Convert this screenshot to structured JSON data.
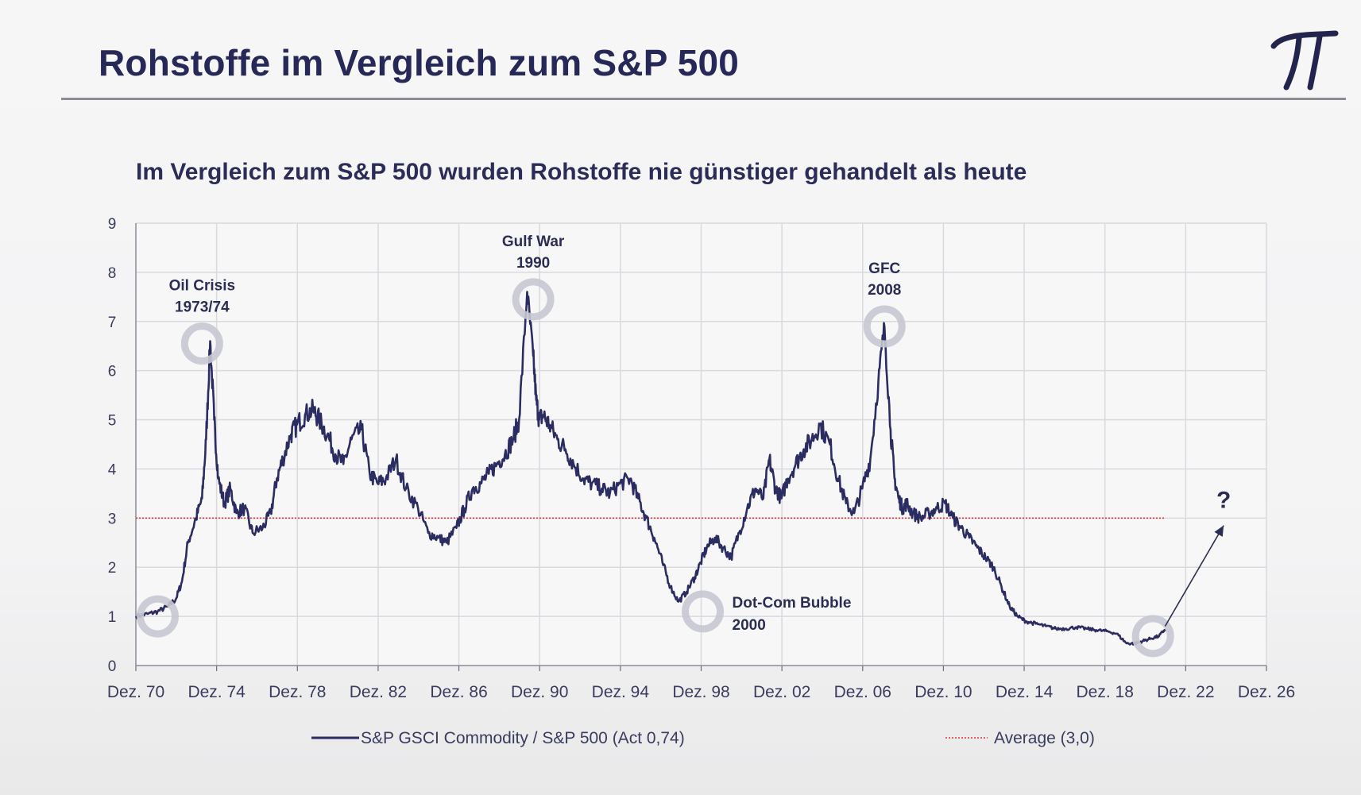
{
  "slide": {
    "title": "Rohstoffe im Vergleich zum S&P 500",
    "logo_glyph": "π"
  },
  "chart_data": {
    "type": "line",
    "title": "Im Vergleich zum S&P 500 wurden Rohstoffe nie günstiger gehandelt als heute",
    "xlabel": "",
    "ylabel": "",
    "ylim": [
      0,
      9
    ],
    "yticks": [
      "0",
      "1",
      "2",
      "3",
      "4",
      "5",
      "6",
      "7",
      "8",
      "9"
    ],
    "xlim": [
      1970.92,
      2026.92
    ],
    "xticks": [
      {
        "year": 1970.92,
        "label": "Dez. 70"
      },
      {
        "year": 1974.92,
        "label": "Dez. 74"
      },
      {
        "year": 1978.92,
        "label": "Dez. 78"
      },
      {
        "year": 1982.92,
        "label": "Dez. 82"
      },
      {
        "year": 1986.92,
        "label": "Dez. 86"
      },
      {
        "year": 1990.92,
        "label": "Dez. 90"
      },
      {
        "year": 1994.92,
        "label": "Dez. 94"
      },
      {
        "year": 1998.92,
        "label": "Dez. 98"
      },
      {
        "year": 2002.92,
        "label": "Dez. 02"
      },
      {
        "year": 2006.92,
        "label": "Dez. 06"
      },
      {
        "year": 2010.92,
        "label": "Dez. 10"
      },
      {
        "year": 2014.92,
        "label": "Dez. 14"
      },
      {
        "year": 2018.92,
        "label": "Dez. 18"
      },
      {
        "year": 2022.92,
        "label": "Dez. 22"
      },
      {
        "year": 2026.92,
        "label": "Dez. 26"
      }
    ],
    "grid": true,
    "series": [
      {
        "name": "S&P GSCI Commodity / S&P 500 (Act 0,74)",
        "color": "#2b2d62",
        "x": [
          1970.92,
          1971.5,
          1972.0,
          1972.5,
          1972.9,
          1973.2,
          1973.5,
          1973.9,
          1974.2,
          1974.4,
          1974.6,
          1974.8,
          1975.0,
          1975.3,
          1975.6,
          1975.9,
          1976.3,
          1976.7,
          1977.2,
          1977.6,
          1977.9,
          1978.2,
          1978.6,
          1978.9,
          1979.3,
          1979.7,
          1980.0,
          1980.4,
          1980.8,
          1981.2,
          1981.6,
          1982.1,
          1982.5,
          1982.9,
          1983.3,
          1983.8,
          1984.3,
          1984.9,
          1985.4,
          1985.9,
          1986.3,
          1986.8,
          1987.2,
          1987.6,
          1988.0,
          1988.4,
          1988.8,
          1989.2,
          1989.6,
          1989.9,
          1990.3,
          1990.6,
          1990.75,
          1990.9,
          1991.1,
          1991.4,
          1991.8,
          1992.2,
          1992.6,
          1993.1,
          1993.5,
          1994.0,
          1994.4,
          1994.9,
          1995.4,
          1995.8,
          1996.2,
          1996.6,
          1997.0,
          1997.4,
          1997.8,
          1998.2,
          1998.6,
          1998.9,
          1999.2,
          1999.6,
          2000.0,
          2000.4,
          2000.8,
          2001.2,
          2001.6,
          2002.0,
          2002.3,
          2002.6,
          2002.9,
          2003.2,
          2003.6,
          2004.0,
          2004.4,
          2004.8,
          2005.3,
          2005.7,
          2006.1,
          2006.5,
          2006.9,
          2007.3,
          2007.7,
          2008.0,
          2008.3,
          2008.5,
          2008.7,
          2008.9,
          2009.1,
          2009.4,
          2009.8,
          2010.2,
          2010.6,
          2011.0,
          2011.4,
          2011.8,
          2012.2,
          2012.6,
          2013.0,
          2013.4,
          2013.8,
          2014.2,
          2014.6,
          2015.0,
          2015.5,
          2016.0,
          2016.5,
          2017.0,
          2017.5,
          2018.0,
          2018.5,
          2019.0,
          2019.5,
          2020.0,
          2020.4,
          2020.8,
          2021.2,
          2021.6,
          2021.9
        ],
        "values": [
          1.0,
          1.05,
          1.1,
          1.2,
          1.35,
          1.7,
          2.5,
          3.0,
          3.4,
          4.6,
          6.6,
          5.0,
          3.8,
          3.3,
          3.6,
          3.1,
          3.2,
          2.7,
          2.8,
          3.1,
          3.8,
          4.2,
          4.7,
          4.9,
          5.1,
          5.2,
          5.0,
          4.7,
          4.3,
          4.1,
          4.6,
          4.8,
          3.9,
          3.7,
          3.8,
          4.2,
          3.6,
          3.2,
          2.7,
          2.6,
          2.5,
          2.8,
          3.2,
          3.6,
          3.7,
          3.9,
          4.1,
          4.3,
          4.6,
          5.0,
          7.6,
          6.3,
          5.4,
          5.0,
          5.1,
          4.9,
          4.6,
          4.4,
          4.1,
          3.8,
          3.7,
          3.6,
          3.5,
          3.7,
          3.8,
          3.4,
          3.0,
          2.6,
          2.1,
          1.6,
          1.3,
          1.5,
          1.8,
          2.1,
          2.4,
          2.6,
          2.4,
          2.2,
          2.7,
          3.2,
          3.6,
          3.4,
          4.2,
          3.6,
          3.4,
          3.8,
          4.1,
          4.4,
          4.6,
          4.9,
          4.5,
          3.8,
          3.3,
          3.1,
          3.6,
          4.2,
          5.8,
          6.9,
          4.8,
          3.8,
          3.4,
          3.2,
          3.3,
          3.1,
          3.0,
          3.1,
          3.2,
          3.3,
          3.0,
          2.8,
          2.6,
          2.4,
          2.2,
          2.0,
          1.6,
          1.2,
          1.0,
          0.9,
          0.85,
          0.8,
          0.75,
          0.75,
          0.78,
          0.75,
          0.72,
          0.7,
          0.65,
          0.45,
          0.45,
          0.5,
          0.55,
          0.6,
          0.74
        ]
      },
      {
        "name": "Average (3,0)",
        "color": "#d9353b",
        "x": [
          1970.92,
          2021.9
        ],
        "values": [
          3.0,
          3.0
        ]
      }
    ],
    "legend": {
      "placement": "bottom",
      "items": [
        {
          "label": "S&P GSCI Commodity / S&P 500 (Act 0,74)",
          "style": "solid",
          "color": "#2b2d62"
        },
        {
          "label": "Average (3,0)",
          "style": "dotted",
          "color": "#d9353b"
        }
      ]
    },
    "annotations": [
      {
        "line1": "Oil Crisis",
        "line2": "1973/74",
        "x": 1974.2,
        "y": 6.55,
        "label_position": "above"
      },
      {
        "line1": "Gulf War",
        "line2": "1990",
        "x": 1990.6,
        "y": 7.45,
        "label_position": "above"
      },
      {
        "line1": "GFC",
        "line2": "2008",
        "x": 2008.0,
        "y": 6.9,
        "label_position": "above"
      },
      {
        "line1": "Dot-Com Bubble",
        "line2": "2000",
        "x": 1999.0,
        "y": 1.1,
        "label_position": "right"
      },
      {
        "line1": "",
        "line2": "",
        "x": 1972.0,
        "y": 1.0,
        "label_position": "none"
      },
      {
        "line1": "",
        "line2": "",
        "x": 2021.3,
        "y": 0.6,
        "label_position": "none"
      }
    ],
    "outlook": {
      "label": "?",
      "from_x": 2021.9,
      "from_y": 0.8,
      "to_x": 2024.8,
      "to_y": 2.85
    }
  }
}
